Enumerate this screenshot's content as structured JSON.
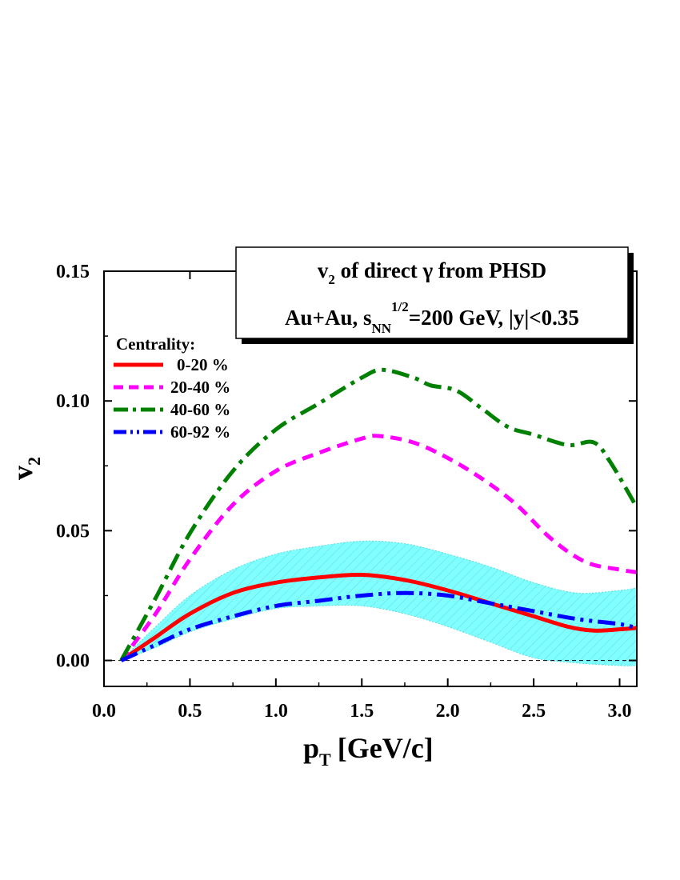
{
  "chart_data": {
    "type": "line",
    "xlabel": "p",
    "xlabel_sub": "T",
    "xlabel_unit": "[GeV/c]",
    "ylabel": "v",
    "ylabel_sub": "2",
    "xlim": [
      0.0,
      3.1
    ],
    "ylim": [
      -0.01,
      0.15
    ],
    "x_ticks": [
      {
        "value": 0.0,
        "label": "0.0"
      },
      {
        "value": 0.5,
        "label": "0.5"
      },
      {
        "value": 1.0,
        "label": "1.0"
      },
      {
        "value": 1.5,
        "label": "1.5"
      },
      {
        "value": 2.0,
        "label": "2.0"
      },
      {
        "value": 2.5,
        "label": "2.5"
      },
      {
        "value": 3.0,
        "label": "3.0"
      }
    ],
    "y_ticks": [
      {
        "value": 0.0,
        "label": "0.00"
      },
      {
        "value": 0.05,
        "label": "0.05"
      },
      {
        "value": 0.1,
        "label": "0.10"
      },
      {
        "value": 0.15,
        "label": "0.15"
      }
    ],
    "zero_line": true,
    "title_box": {
      "line1_v": "v",
      "line1_sub": "2",
      "line1_rest": " of direct γ from PHSD",
      "line2_pre": "Au+Au, s",
      "line2_sub": "NN",
      "line2_sup": "1/2",
      "line2_rest": "=200 GeV, |y|<0.35"
    },
    "legend": {
      "title": "Centrality:",
      "placement": "top-left"
    },
    "series": [
      {
        "name": "0-20 %",
        "color": "#ff0000",
        "style": "solid",
        "x": [
          0.1,
          0.3,
          0.5,
          0.75,
          1.0,
          1.25,
          1.5,
          1.75,
          2.0,
          2.25,
          2.5,
          2.7,
          2.85,
          3.0,
          3.1
        ],
        "y": [
          0.0,
          0.009,
          0.018,
          0.026,
          0.03,
          0.032,
          0.033,
          0.031,
          0.027,
          0.022,
          0.017,
          0.013,
          0.0115,
          0.012,
          0.0125
        ]
      },
      {
        "name": "20-40 %",
        "color": "#ff00ff",
        "style": "dashed",
        "x": [
          0.1,
          0.3,
          0.5,
          0.75,
          1.0,
          1.25,
          1.5,
          1.6,
          1.8,
          2.0,
          2.2,
          2.4,
          2.6,
          2.8,
          3.0,
          3.1
        ],
        "y": [
          0.0,
          0.018,
          0.039,
          0.06,
          0.073,
          0.08,
          0.0855,
          0.0865,
          0.084,
          0.078,
          0.07,
          0.06,
          0.047,
          0.038,
          0.035,
          0.034
        ]
      },
      {
        "name": "40-60 %",
        "color": "#008000",
        "style": "dashdot",
        "x": [
          0.1,
          0.3,
          0.5,
          0.75,
          1.0,
          1.25,
          1.5,
          1.62,
          1.8,
          1.9,
          2.05,
          2.2,
          2.35,
          2.5,
          2.7,
          2.85,
          2.95,
          3.1
        ],
        "y": [
          0.0,
          0.024,
          0.049,
          0.073,
          0.089,
          0.099,
          0.109,
          0.112,
          0.109,
          0.106,
          0.104,
          0.097,
          0.09,
          0.087,
          0.083,
          0.084,
          0.076,
          0.059
        ]
      },
      {
        "name": "60-92 %",
        "color": "#0000ff",
        "style": "dashdotdot",
        "x": [
          0.1,
          0.3,
          0.5,
          0.75,
          1.0,
          1.25,
          1.5,
          1.75,
          2.0,
          2.25,
          2.5,
          2.75,
          3.0,
          3.1
        ],
        "y": [
          0.0,
          0.006,
          0.012,
          0.017,
          0.021,
          0.023,
          0.025,
          0.026,
          0.025,
          0.022,
          0.019,
          0.016,
          0.014,
          0.0125
        ]
      }
    ],
    "band": {
      "series": "0-20 %",
      "color": "#7fffff",
      "x": [
        0.1,
        0.3,
        0.5,
        0.75,
        1.0,
        1.25,
        1.5,
        1.75,
        2.0,
        2.25,
        2.5,
        2.75,
        3.0,
        3.1
      ],
      "upper": [
        0.0,
        0.013,
        0.025,
        0.035,
        0.041,
        0.044,
        0.046,
        0.045,
        0.041,
        0.036,
        0.03,
        0.026,
        0.027,
        0.028
      ],
      "lower": [
        0.0,
        0.005,
        0.011,
        0.016,
        0.02,
        0.021,
        0.021,
        0.018,
        0.013,
        0.007,
        0.001,
        -0.001,
        -0.002,
        -0.002
      ]
    }
  }
}
